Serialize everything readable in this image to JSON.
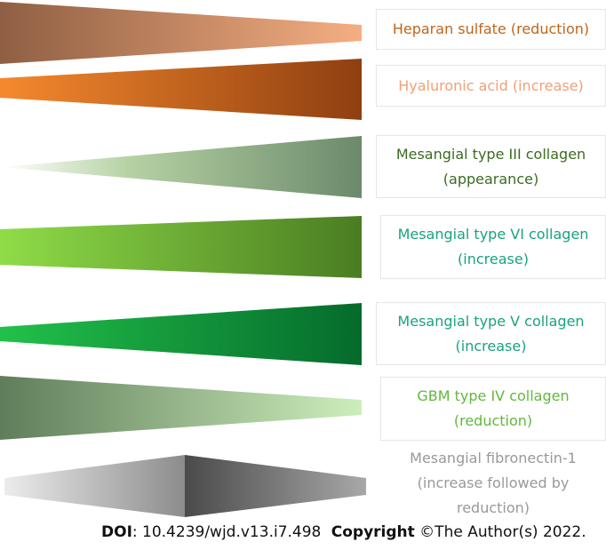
{
  "rows": [
    {
      "label_lines": [
        "Heparan sulfate (reduction)"
      ],
      "text_color": "#c0651a",
      "shape": "wedge-narrowing-right",
      "gradient": [
        "#8f5f43",
        "#f5ae82"
      ]
    },
    {
      "label_lines": [
        "Hyaluronic acid (increase)"
      ],
      "text_color": "#f2a074",
      "shape": "wedge-widening-right",
      "gradient": [
        "#f5892e",
        "#8f3f10"
      ]
    },
    {
      "label_lines": [
        "Mesangial type III collagen",
        "(appearance)"
      ],
      "text_color": "#3b6b22",
      "shape": "wedge-widening-right",
      "gradient": [
        "#ffffff",
        "#6b8a6b"
      ]
    },
    {
      "label_lines": [
        "Mesangial type VI collagen",
        "(increase)"
      ],
      "text_color": "#19a37e",
      "shape": "band-widening-right",
      "gradient": [
        "#8fdc48",
        "#4a7d22"
      ]
    },
    {
      "label_lines": [
        "Mesangial type V collagen",
        "(increase)"
      ],
      "text_color": "#19a37e",
      "shape": "band-widening-right",
      "gradient": [
        "#22c14a",
        "#056b2c"
      ]
    },
    {
      "label_lines": [
        "GBM type IV collagen",
        "(reduction)"
      ],
      "text_color": "#63b83c",
      "shape": "wedge-narrowing-right",
      "gradient": [
        "#5f7d5a",
        "#cdeebc"
      ]
    },
    {
      "label_lines": [
        "Mesangial fibronectin-1",
        "(increase followed by",
        "reduction)"
      ],
      "text_color": "#999999",
      "shape": "diamond",
      "gradient": [
        "#ececec",
        "#4a4a4a"
      ]
    }
  ],
  "footer": {
    "doi_label": "DOI",
    "doi_value": ": 10.4239/wjd.v13.i7.498",
    "copyright_label": "Copyright",
    "copyright_value": " ©The Author(s) 2022."
  }
}
